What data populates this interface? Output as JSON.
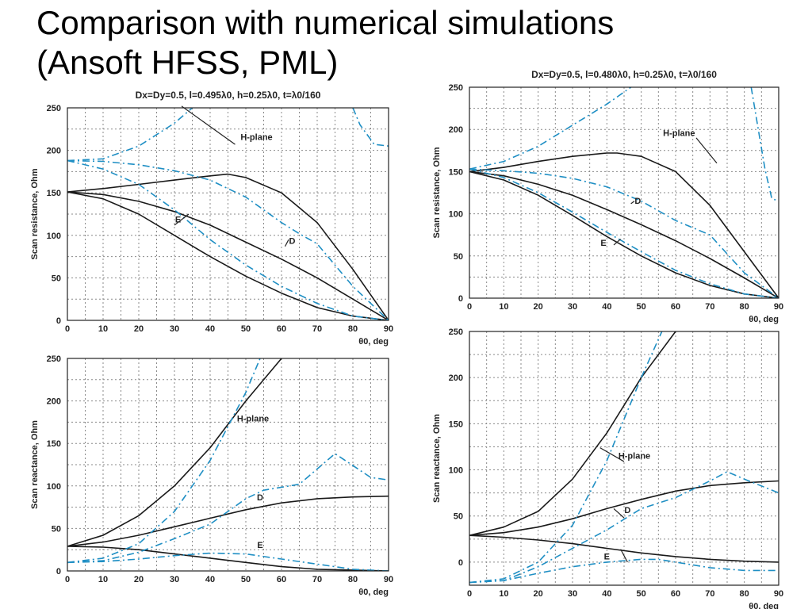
{
  "slide": {
    "title_line1": "Comparison with numerical simulations",
    "title_line2": "(Ansoft HFSS, PML)"
  },
  "colors": {
    "analytic": "#1a1a1a",
    "simulation": "#1f8fc4"
  },
  "chart_data": [
    {
      "id": "left-top",
      "type": "line",
      "title": "Dx=Dy=0.5, l=0.495λ0, h=0.25λ0, t=λ0/160",
      "xlabel": "θ0, deg",
      "ylabel": "Scan resistance, Ohm",
      "xlim": [
        0,
        90
      ],
      "ylim": [
        0,
        250
      ],
      "xticks": [
        0,
        10,
        20,
        30,
        40,
        50,
        60,
        70,
        80,
        90
      ],
      "yticks": [
        0,
        50,
        100,
        150,
        200,
        250
      ],
      "grid": true,
      "series": [
        {
          "name": "H-plane",
          "style": "solid",
          "x": [
            0,
            10,
            20,
            30,
            40,
            45,
            50,
            60,
            70,
            80,
            90
          ],
          "y": [
            151,
            155,
            160,
            165,
            170,
            172,
            168,
            150,
            115,
            60,
            0
          ]
        },
        {
          "name": "D",
          "style": "solid",
          "x": [
            0,
            10,
            20,
            30,
            40,
            50,
            60,
            70,
            80,
            90
          ],
          "y": [
            151,
            148,
            140,
            128,
            112,
            92,
            72,
            50,
            25,
            0
          ]
        },
        {
          "name": "E",
          "style": "solid",
          "x": [
            0,
            10,
            20,
            30,
            40,
            50,
            60,
            70,
            80,
            90
          ],
          "y": [
            151,
            143,
            125,
            100,
            75,
            52,
            32,
            15,
            5,
            0
          ]
        },
        {
          "style": "dashed",
          "x": [
            0,
            10,
            20,
            30,
            35
          ],
          "y": [
            188,
            190,
            205,
            232,
            250
          ]
        },
        {
          "style": "dashed",
          "x": [
            80,
            82,
            86,
            90
          ],
          "y": [
            250,
            230,
            207,
            205
          ]
        },
        {
          "style": "dashed",
          "x": [
            0,
            10,
            20,
            30,
            40,
            50,
            60,
            65,
            70,
            80,
            90
          ],
          "y": [
            188,
            187,
            183,
            176,
            165,
            145,
            115,
            102,
            90,
            40,
            0
          ]
        },
        {
          "style": "dashed",
          "x": [
            0,
            10,
            20,
            30,
            40,
            50,
            60,
            70,
            80,
            90
          ],
          "y": [
            188,
            178,
            160,
            130,
            95,
            65,
            40,
            20,
            5,
            0
          ]
        }
      ],
      "annotations": [
        "H-plane",
        "E",
        "D"
      ]
    },
    {
      "id": "right-top",
      "type": "line",
      "title": "Dx=Dy=0.5, l=0.480λ0, h=0.25λ0, t=λ0/160",
      "xlabel": "θ0, deg",
      "ylabel": "Scan resistance, Ohm",
      "xlim": [
        0,
        90
      ],
      "ylim": [
        0,
        250
      ],
      "xticks": [
        0,
        10,
        20,
        30,
        40,
        50,
        60,
        70,
        80,
        90
      ],
      "yticks": [
        0,
        50,
        100,
        150,
        200,
        250
      ],
      "grid": true,
      "series": [
        {
          "name": "H-plane",
          "style": "solid",
          "x": [
            0,
            10,
            20,
            30,
            40,
            43,
            50,
            60,
            70,
            80,
            90
          ],
          "y": [
            150,
            155,
            162,
            168,
            172,
            172,
            168,
            150,
            110,
            55,
            0
          ]
        },
        {
          "name": "D",
          "style": "solid",
          "x": [
            0,
            10,
            20,
            30,
            40,
            50,
            60,
            70,
            80,
            90
          ],
          "y": [
            150,
            145,
            135,
            122,
            105,
            87,
            68,
            47,
            24,
            0
          ]
        },
        {
          "name": "E",
          "style": "solid",
          "x": [
            0,
            10,
            20,
            30,
            40,
            50,
            60,
            70,
            80,
            90
          ],
          "y": [
            150,
            140,
            122,
            98,
            73,
            50,
            30,
            15,
            5,
            0
          ]
        },
        {
          "style": "dashed",
          "x": [
            0,
            10,
            20,
            30,
            40,
            47
          ],
          "y": [
            153,
            162,
            180,
            205,
            230,
            250
          ]
        },
        {
          "style": "dashed",
          "x": [
            82,
            86,
            88,
            90
          ],
          "y": [
            250,
            153,
            118,
            115
          ]
        },
        {
          "style": "dashed",
          "x": [
            0,
            10,
            20,
            30,
            40,
            50,
            60,
            70,
            80,
            90
          ],
          "y": [
            153,
            151,
            148,
            142,
            132,
            115,
            92,
            75,
            30,
            0
          ]
        },
        {
          "style": "dashed",
          "x": [
            0,
            10,
            20,
            30,
            40,
            50,
            60,
            70,
            80,
            90
          ],
          "y": [
            153,
            143,
            125,
            102,
            78,
            55,
            33,
            17,
            5,
            0
          ]
        }
      ],
      "annotations": [
        "H-plane",
        "D",
        "E"
      ]
    },
    {
      "id": "left-bottom",
      "type": "line",
      "title": "",
      "xlabel": "θ0, deg",
      "ylabel": "Scan reactance, Ohm",
      "xlim": [
        0,
        90
      ],
      "ylim": [
        0,
        250
      ],
      "xticks": [
        0,
        10,
        20,
        30,
        40,
        50,
        60,
        70,
        80,
        90
      ],
      "yticks": [
        0,
        50,
        100,
        150,
        200,
        250
      ],
      "grid": true,
      "series": [
        {
          "name": "H-plane",
          "style": "solid",
          "x": [
            0,
            10,
            20,
            30,
            40,
            50,
            60
          ],
          "y": [
            29,
            42,
            65,
            100,
            145,
            200,
            250
          ]
        },
        {
          "name": "D",
          "style": "solid",
          "x": [
            0,
            10,
            20,
            30,
            40,
            50,
            60,
            70,
            80,
            90
          ],
          "y": [
            29,
            34,
            42,
            52,
            62,
            72,
            80,
            85,
            87,
            88
          ]
        },
        {
          "name": "E",
          "style": "solid",
          "x": [
            0,
            10,
            20,
            30,
            40,
            50,
            60,
            70,
            80,
            90
          ],
          "y": [
            29,
            28,
            25,
            20,
            15,
            10,
            5,
            2,
            1,
            0
          ]
        },
        {
          "style": "dashed",
          "x": [
            0,
            10,
            20,
            30,
            40,
            50,
            54
          ],
          "y": [
            10,
            15,
            32,
            70,
            130,
            210,
            250
          ]
        },
        {
          "style": "dashed",
          "x": [
            0,
            10,
            20,
            30,
            40,
            50,
            55,
            65,
            75,
            85,
            90
          ],
          "y": [
            10,
            12,
            22,
            38,
            55,
            85,
            95,
            102,
            138,
            110,
            107
          ]
        },
        {
          "style": "dashed",
          "x": [
            0,
            10,
            20,
            30,
            40,
            50,
            60,
            70,
            80,
            90
          ],
          "y": [
            10,
            11,
            14,
            18,
            21,
            20,
            14,
            8,
            2,
            0
          ]
        }
      ],
      "annotations": [
        "H-plane",
        "D",
        "E"
      ]
    },
    {
      "id": "right-bottom",
      "type": "line",
      "title": "",
      "xlabel": "θ0, deg",
      "ylabel": "Scan reactance, Ohm",
      "xlim": [
        0,
        90
      ],
      "ylim": [
        -25,
        250
      ],
      "xticks": [
        0,
        10,
        20,
        30,
        40,
        50,
        60,
        70,
        80,
        90
      ],
      "yticks": [
        0,
        50,
        100,
        150,
        200,
        250
      ],
      "grid": true,
      "series": [
        {
          "name": "H-plane",
          "style": "solid",
          "x": [
            0,
            10,
            20,
            30,
            40,
            50,
            60
          ],
          "y": [
            29,
            38,
            55,
            90,
            140,
            200,
            250
          ]
        },
        {
          "name": "D",
          "style": "solid",
          "x": [
            0,
            10,
            20,
            30,
            40,
            50,
            60,
            70,
            80,
            90
          ],
          "y": [
            29,
            32,
            38,
            47,
            58,
            68,
            77,
            83,
            86,
            88
          ]
        },
        {
          "name": "E",
          "style": "solid",
          "x": [
            0,
            10,
            20,
            30,
            40,
            50,
            60,
            70,
            80,
            90
          ],
          "y": [
            29,
            27,
            24,
            20,
            15,
            10,
            6,
            3,
            1,
            0
          ]
        },
        {
          "style": "dashed",
          "x": [
            0,
            10,
            20,
            30,
            40,
            50,
            56
          ],
          "y": [
            -22,
            -18,
            0,
            40,
            110,
            200,
            250
          ]
        },
        {
          "style": "dashed",
          "x": [
            0,
            10,
            20,
            30,
            40,
            50,
            60,
            70,
            75,
            80,
            90
          ],
          "y": [
            -22,
            -20,
            -5,
            15,
            35,
            58,
            70,
            88,
            98,
            90,
            75
          ]
        },
        {
          "style": "dashed",
          "x": [
            0,
            10,
            20,
            30,
            40,
            50,
            55,
            60,
            70,
            80,
            90
          ],
          "y": [
            -22,
            -20,
            -12,
            -5,
            0,
            3,
            3,
            0,
            -6,
            -9,
            -9
          ]
        }
      ],
      "annotations": [
        "H-plane",
        "D",
        "E"
      ]
    }
  ]
}
